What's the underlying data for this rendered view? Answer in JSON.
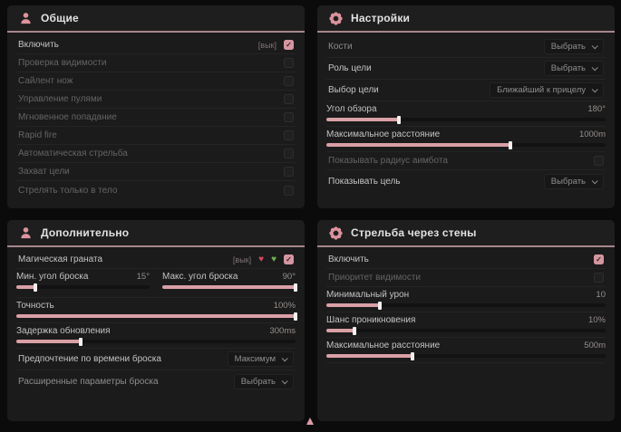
{
  "theme": {
    "accent_pink": "#d9a0a6",
    "header_underline": "#a5868b",
    "panel_bg": "#1b1b1b",
    "page_bg": "#0b0b0b",
    "checkbox_checked": "#d596a0",
    "broken_heart_color": "#cf4b5e",
    "green_heart_color": "#6db04e"
  },
  "panels": {
    "general": {
      "title": "Общие",
      "icon": "person-icon",
      "rows": [
        {
          "label": "Включить",
          "badge": "[вык]",
          "checked": true
        },
        {
          "label": "Проверка видимости",
          "checked": false
        },
        {
          "label": "Сайлент нож",
          "checked": false
        },
        {
          "label": "Управление пулями",
          "checked": false
        },
        {
          "label": "Мгновенное попадание",
          "checked": false
        },
        {
          "label": "Rapid fire",
          "checked": false
        },
        {
          "label": "Автоматическая стрельба",
          "checked": false
        },
        {
          "label": "Захват цели",
          "checked": false
        },
        {
          "label": "Стрелять только в тело",
          "checked": false
        }
      ]
    },
    "settings": {
      "title": "Настройки",
      "icon": "flower-icon",
      "rows": [
        {
          "label": "Кости",
          "value": "Выбрать"
        },
        {
          "label": "Роль цели",
          "value": "Выбрать"
        },
        {
          "label": "Выбор цели",
          "value": "Ближайший к прицелу"
        },
        {
          "label": "Угол обзора",
          "value": "180°",
          "fill": 26
        },
        {
          "label": "Максимальное расстояние",
          "value": "1000m",
          "fill": 66
        },
        {
          "label": "Показывать радиус аимбота",
          "checked": false
        },
        {
          "label": "Показывать цель",
          "value": "Выбрать"
        }
      ]
    },
    "additional": {
      "title": "Дополнительно",
      "icon": "person-icon",
      "rows": [
        {
          "label": "Магическая граната",
          "badge": "[вык]",
          "checked": true,
          "icons": [
            "broken-heart-icon",
            "green-heart-icon"
          ]
        },
        {
          "min": {
            "label": "Мин. угол броска",
            "value": "15°",
            "fill": 14
          },
          "max": {
            "label": "Макс. угол броска",
            "value": "90°",
            "fill": 100
          }
        },
        {
          "label": "Точность",
          "value": "100%",
          "fill": 100
        },
        {
          "label": "Задержка обновления",
          "value": "300ms",
          "fill": 23
        },
        {
          "label": "Предпочтение по времени броска",
          "value": "Максимум"
        },
        {
          "label": "Расширенные параметры броска",
          "value": "Выбрать"
        }
      ]
    },
    "wallbang": {
      "title": "Стрельба через стены",
      "icon": "flower-icon",
      "rows": [
        {
          "label": "Включить",
          "checked": true
        },
        {
          "label": "Приоритет видимости",
          "checked": false
        },
        {
          "label": "Минимальный урон",
          "value": "10",
          "fill": 19
        },
        {
          "label": "Шанс проникновения",
          "value": "10%",
          "fill": 10
        },
        {
          "label": "Максимальное расстояние",
          "value": "500m",
          "fill": 31
        }
      ]
    }
  }
}
